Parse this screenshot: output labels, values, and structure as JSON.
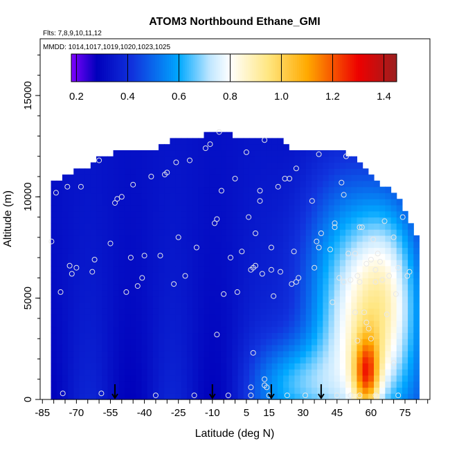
{
  "chart_data": {
    "type": "heatmap",
    "title": "ATOM3 Northbound Ethane_GMI",
    "flights_note": "Flts: 7,8,9,10,11,12",
    "dates_note": "MMDD: 1014,1017,1019,1020,1023,1025",
    "xlabel": "Latitude (deg N)",
    "ylabel": "Altitude (m)",
    "xlim": [
      -86,
      86
    ],
    "ylim": [
      0,
      17800
    ],
    "x_ticks": [
      -85,
      -70,
      -55,
      -40,
      -25,
      -10,
      5,
      15,
      30,
      45,
      60,
      75
    ],
    "x_tick_labels": [
      "-85",
      "-70",
      "-55",
      "-40",
      "-25",
      "-10",
      "5",
      "15",
      "30",
      "45",
      "60",
      "75"
    ],
    "y_ticks": [
      0,
      5000,
      10000,
      15000
    ],
    "y_tick_labels": [
      "0",
      "5000",
      "10000",
      "15000"
    ],
    "colorbar": {
      "range": [
        0.18,
        1.45
      ],
      "ticks": [
        0.2,
        0.4,
        0.6,
        0.8,
        1.0,
        1.2,
        1.4
      ],
      "tick_labels": [
        "0.2",
        "0.4",
        "0.6",
        "0.8",
        "1.0",
        "1.2",
        "1.4"
      ],
      "colors": [
        "#7f00ff",
        "#0000bb",
        "#1133dd",
        "#00a8ff",
        "#bfe6ff",
        "#ffffff",
        "#ffe680",
        "#ffaa00",
        "#ee0000",
        "#9b1f1f"
      ],
      "color_stops": [
        0.18,
        0.28,
        0.42,
        0.6,
        0.72,
        0.8,
        0.95,
        1.1,
        1.3,
        1.45
      ]
    },
    "profile_top_altitude": [
      [
        -80,
        10600
      ],
      [
        -75,
        11000
      ],
      [
        -70,
        11200
      ],
      [
        -65,
        11400
      ],
      [
        -60,
        11800
      ],
      [
        -55,
        12000
      ],
      [
        -45,
        12300
      ],
      [
        -35,
        12300
      ],
      [
        -25,
        12800
      ],
      [
        -15,
        12800
      ],
      [
        -10,
        13100
      ],
      [
        -5,
        13000
      ],
      [
        0,
        12900
      ],
      [
        10,
        12900
      ],
      [
        20,
        12900
      ],
      [
        25,
        12300
      ],
      [
        35,
        12300
      ],
      [
        45,
        12300
      ],
      [
        50,
        12000
      ],
      [
        55,
        11500
      ],
      [
        60,
        11000
      ],
      [
        65,
        10500
      ],
      [
        70,
        10000
      ],
      [
        75,
        9300
      ],
      [
        80,
        8100
      ]
    ],
    "arrows_latitude": [
      -53,
      -10,
      16,
      38
    ],
    "observation_points": [
      [
        -81,
        7800
      ],
      [
        -79,
        10200
      ],
      [
        -77,
        5300
      ],
      [
        -76,
        300
      ],
      [
        -74,
        10500
      ],
      [
        -73,
        6600
      ],
      [
        -72,
        6200
      ],
      [
        -70,
        6500
      ],
      [
        -68,
        10500
      ],
      [
        -63,
        6300
      ],
      [
        -62,
        6900
      ],
      [
        -60,
        11800
      ],
      [
        -59,
        300
      ],
      [
        -55,
        7700
      ],
      [
        -53,
        9700
      ],
      [
        -52,
        9900
      ],
      [
        -50,
        10000
      ],
      [
        -48,
        5300
      ],
      [
        -46,
        7000
      ],
      [
        -45,
        10600
      ],
      [
        -43,
        5600
      ],
      [
        -41,
        6000
      ],
      [
        -40,
        7100
      ],
      [
        -37,
        11000
      ],
      [
        -35,
        200
      ],
      [
        -33,
        7100
      ],
      [
        -31,
        11100
      ],
      [
        -30,
        11200
      ],
      [
        -27,
        5700
      ],
      [
        -26,
        11700
      ],
      [
        -25,
        8000
      ],
      [
        -22,
        6100
      ],
      [
        -20,
        11800
      ],
      [
        -18,
        200
      ],
      [
        -17,
        7500
      ],
      [
        -13,
        12400
      ],
      [
        -11,
        12600
      ],
      [
        -9,
        8700
      ],
      [
        -8,
        8900
      ],
      [
        -8,
        3200
      ],
      [
        -7,
        13200
      ],
      [
        -6,
        10300
      ],
      [
        -5,
        5200
      ],
      [
        -3,
        200
      ],
      [
        -2,
        7000
      ],
      [
        0,
        10900
      ],
      [
        1,
        5300
      ],
      [
        3,
        7300
      ],
      [
        5,
        12200
      ],
      [
        6,
        9000
      ],
      [
        7,
        6400
      ],
      [
        7,
        600
      ],
      [
        7,
        200
      ],
      [
        8,
        2300
      ],
      [
        8,
        6500
      ],
      [
        9,
        8200
      ],
      [
        9,
        6600
      ],
      [
        11,
        10300
      ],
      [
        11,
        9800
      ],
      [
        12,
        6200
      ],
      [
        13,
        12800
      ],
      [
        13,
        1000
      ],
      [
        13,
        700
      ],
      [
        14,
        600
      ],
      [
        15,
        200
      ],
      [
        16,
        7500
      ],
      [
        16,
        6400
      ],
      [
        17,
        5100
      ],
      [
        19,
        10500
      ],
      [
        20,
        6300
      ],
      [
        22,
        10900
      ],
      [
        23,
        200
      ],
      [
        24,
        10900
      ],
      [
        25,
        5700
      ],
      [
        26,
        7300
      ],
      [
        27,
        11400
      ],
      [
        27,
        5800
      ],
      [
        28,
        6000
      ],
      [
        31,
        200
      ],
      [
        34,
        9800
      ],
      [
        35,
        6500
      ],
      [
        36,
        7800
      ],
      [
        37,
        7500
      ],
      [
        37,
        12100
      ],
      [
        38,
        8200
      ],
      [
        42,
        7400
      ],
      [
        43,
        4800
      ],
      [
        44,
        8500
      ],
      [
        44,
        8700
      ],
      [
        45,
        200
      ],
      [
        46,
        6000
      ],
      [
        47,
        10700
      ],
      [
        48,
        5800
      ],
      [
        48,
        10100
      ],
      [
        49,
        12000
      ],
      [
        50,
        7200
      ],
      [
        51,
        5900
      ],
      [
        51,
        200
      ],
      [
        53,
        7200
      ],
      [
        53,
        4300
      ],
      [
        54,
        6100
      ],
      [
        54,
        2900
      ],
      [
        55,
        5800
      ],
      [
        55,
        8500
      ],
      [
        55,
        200
      ],
      [
        56,
        8500
      ],
      [
        57,
        4300
      ],
      [
        58,
        6700
      ],
      [
        58,
        3800
      ],
      [
        59,
        3500
      ],
      [
        60,
        6900
      ],
      [
        60,
        3000
      ],
      [
        61,
        7900
      ],
      [
        62,
        6400
      ],
      [
        62,
        5800
      ],
      [
        62,
        200
      ],
      [
        63,
        7200
      ],
      [
        64,
        6800
      ],
      [
        65,
        5900
      ],
      [
        66,
        8800
      ],
      [
        67,
        4200
      ],
      [
        68,
        6100
      ],
      [
        70,
        8000
      ],
      [
        70,
        1800
      ],
      [
        71,
        5200
      ],
      [
        72,
        6500
      ],
      [
        72,
        200
      ],
      [
        74,
        9000
      ],
      [
        76,
        6100
      ],
      [
        77,
        6300
      ]
    ]
  }
}
